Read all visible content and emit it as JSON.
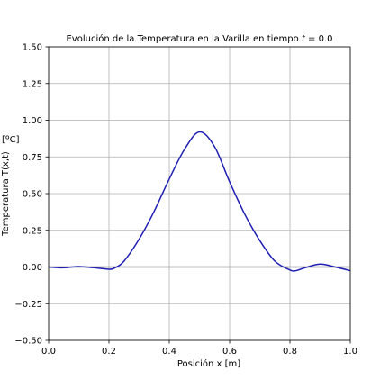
{
  "chart_data": {
    "type": "line",
    "title_text": "Evolución de la Temperatura en la Varilla en tiempo ",
    "title_var": "t",
    "title_eq": " = 0.0",
    "xlabel": "Posición x  [m]",
    "ylabel": "Temperatura T(x,t)",
    "ylabel_unit": "[ºC]",
    "xlim": [
      0.0,
      1.0
    ],
    "ylim": [
      -0.5,
      1.5
    ],
    "grid": true,
    "x_ticks": [
      "0.0",
      "0.2",
      "0.4",
      "0.6",
      "0.8",
      "1.0"
    ],
    "y_ticks": [
      "−0.50",
      "−0.25",
      "0.00",
      "0.25",
      "0.50",
      "0.75",
      "1.00",
      "1.25",
      "1.50"
    ],
    "baseline": {
      "y": 0.0,
      "color": "#808080"
    },
    "series": [
      {
        "color": "#1f1fb4",
        "x": [
          0.0,
          0.05,
          0.1,
          0.15,
          0.2,
          0.22,
          0.25,
          0.3,
          0.35,
          0.4,
          0.45,
          0.5,
          0.55,
          0.6,
          0.65,
          0.7,
          0.75,
          0.8,
          0.82,
          0.85,
          0.9,
          0.95,
          1.0
        ],
        "y": [
          0.0,
          -0.005,
          0.003,
          -0.005,
          -0.015,
          -0.005,
          0.04,
          0.19,
          0.38,
          0.6,
          0.8,
          0.92,
          0.82,
          0.58,
          0.36,
          0.18,
          0.04,
          -0.02,
          -0.025,
          -0.005,
          0.02,
          0.0,
          -0.025
        ]
      }
    ]
  }
}
